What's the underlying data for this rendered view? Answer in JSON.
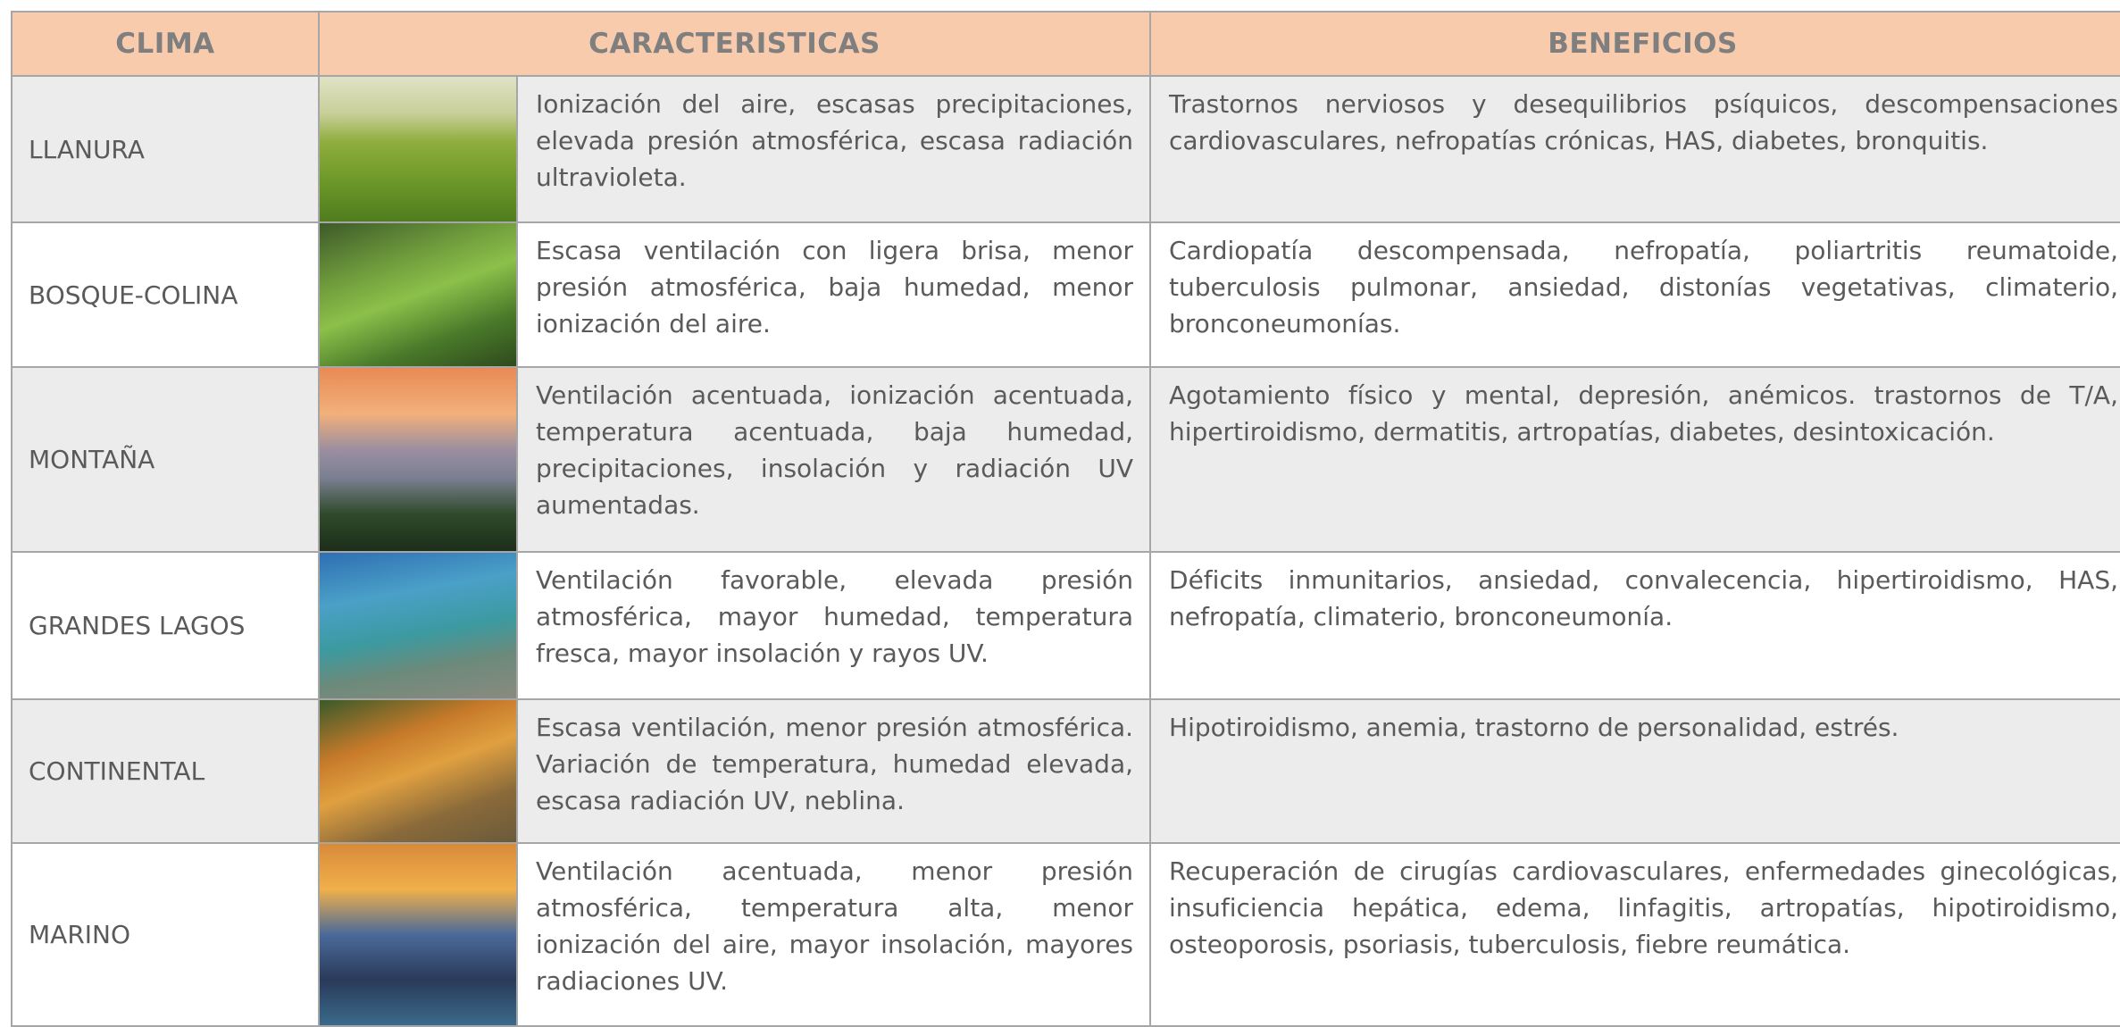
{
  "table": {
    "header": [
      "CLIMA",
      "CARACTERISTICAS",
      "BENEFICIOS"
    ],
    "rows": [
      [
        "LLANURA",
        "Ionización del aire, escasas precipitaciones, elevada presión atmosférica, escasa radiación ultravioleta.",
        "Trastornos nerviosos y desequilibrios psíquicos, descompensaciones cardiovasculares, nefropatías crónicas, HAS, diabetes, bronquitis."
      ],
      [
        "BOSQUE-COLINA",
        "Escasa ventilación con ligera brisa, menor presión atmosférica, baja humedad, menor ionización del aire.",
        "Cardiopatía descompensada, nefropatía, poliartritis reumatoide, tuberculosis pulmonar, ansiedad, distonías vegetativas, climaterio, bronconeumonías."
      ],
      [
        "MONTAÑA",
        "Ventilación acentuada, ionización acentuada, temperatura acentuada, baja humedad, precipitaciones, insolación y radiación UV aumentadas.",
        "Agotamiento físico y mental, depresión, anémicos. trastornos de T/A, hipertiroidismo, dermatitis, artropatías, diabetes, desintoxicación."
      ],
      [
        "GRANDES LAGOS",
        "Ventilación favorable, elevada presión atmosférica, mayor humedad, temperatura fresca, mayor insolación y rayos UV.",
        "Déficits inmunitarios, ansiedad, convalecencia, hipertiroidismo, HAS, nefropatía, climaterio, bronconeumonía."
      ],
      [
        "CONTINENTAL",
        "Escasa ventilación, menor presión atmosférica. Variación de temperatura, humedad elevada, escasa radiación UV, neblina.",
        "Hipotiroidismo, anemia, trastorno de personalidad, estrés."
      ],
      [
        "MARINO",
        "Ventilación acentuada, menor presión atmosférica, temperatura alta, menor ionización del aire, mayor insolación, mayores radiaciones UV.",
        "Recuperación de cirugías cardiovasculares, enfermedades ginecológicas, insuficiencia hepática, edema, linfagitis, artropatías, hipotiroidismo, osteoporosis, psoriasis, tuberculosis, fiebre reumática."
      ]
    ]
  }
}
